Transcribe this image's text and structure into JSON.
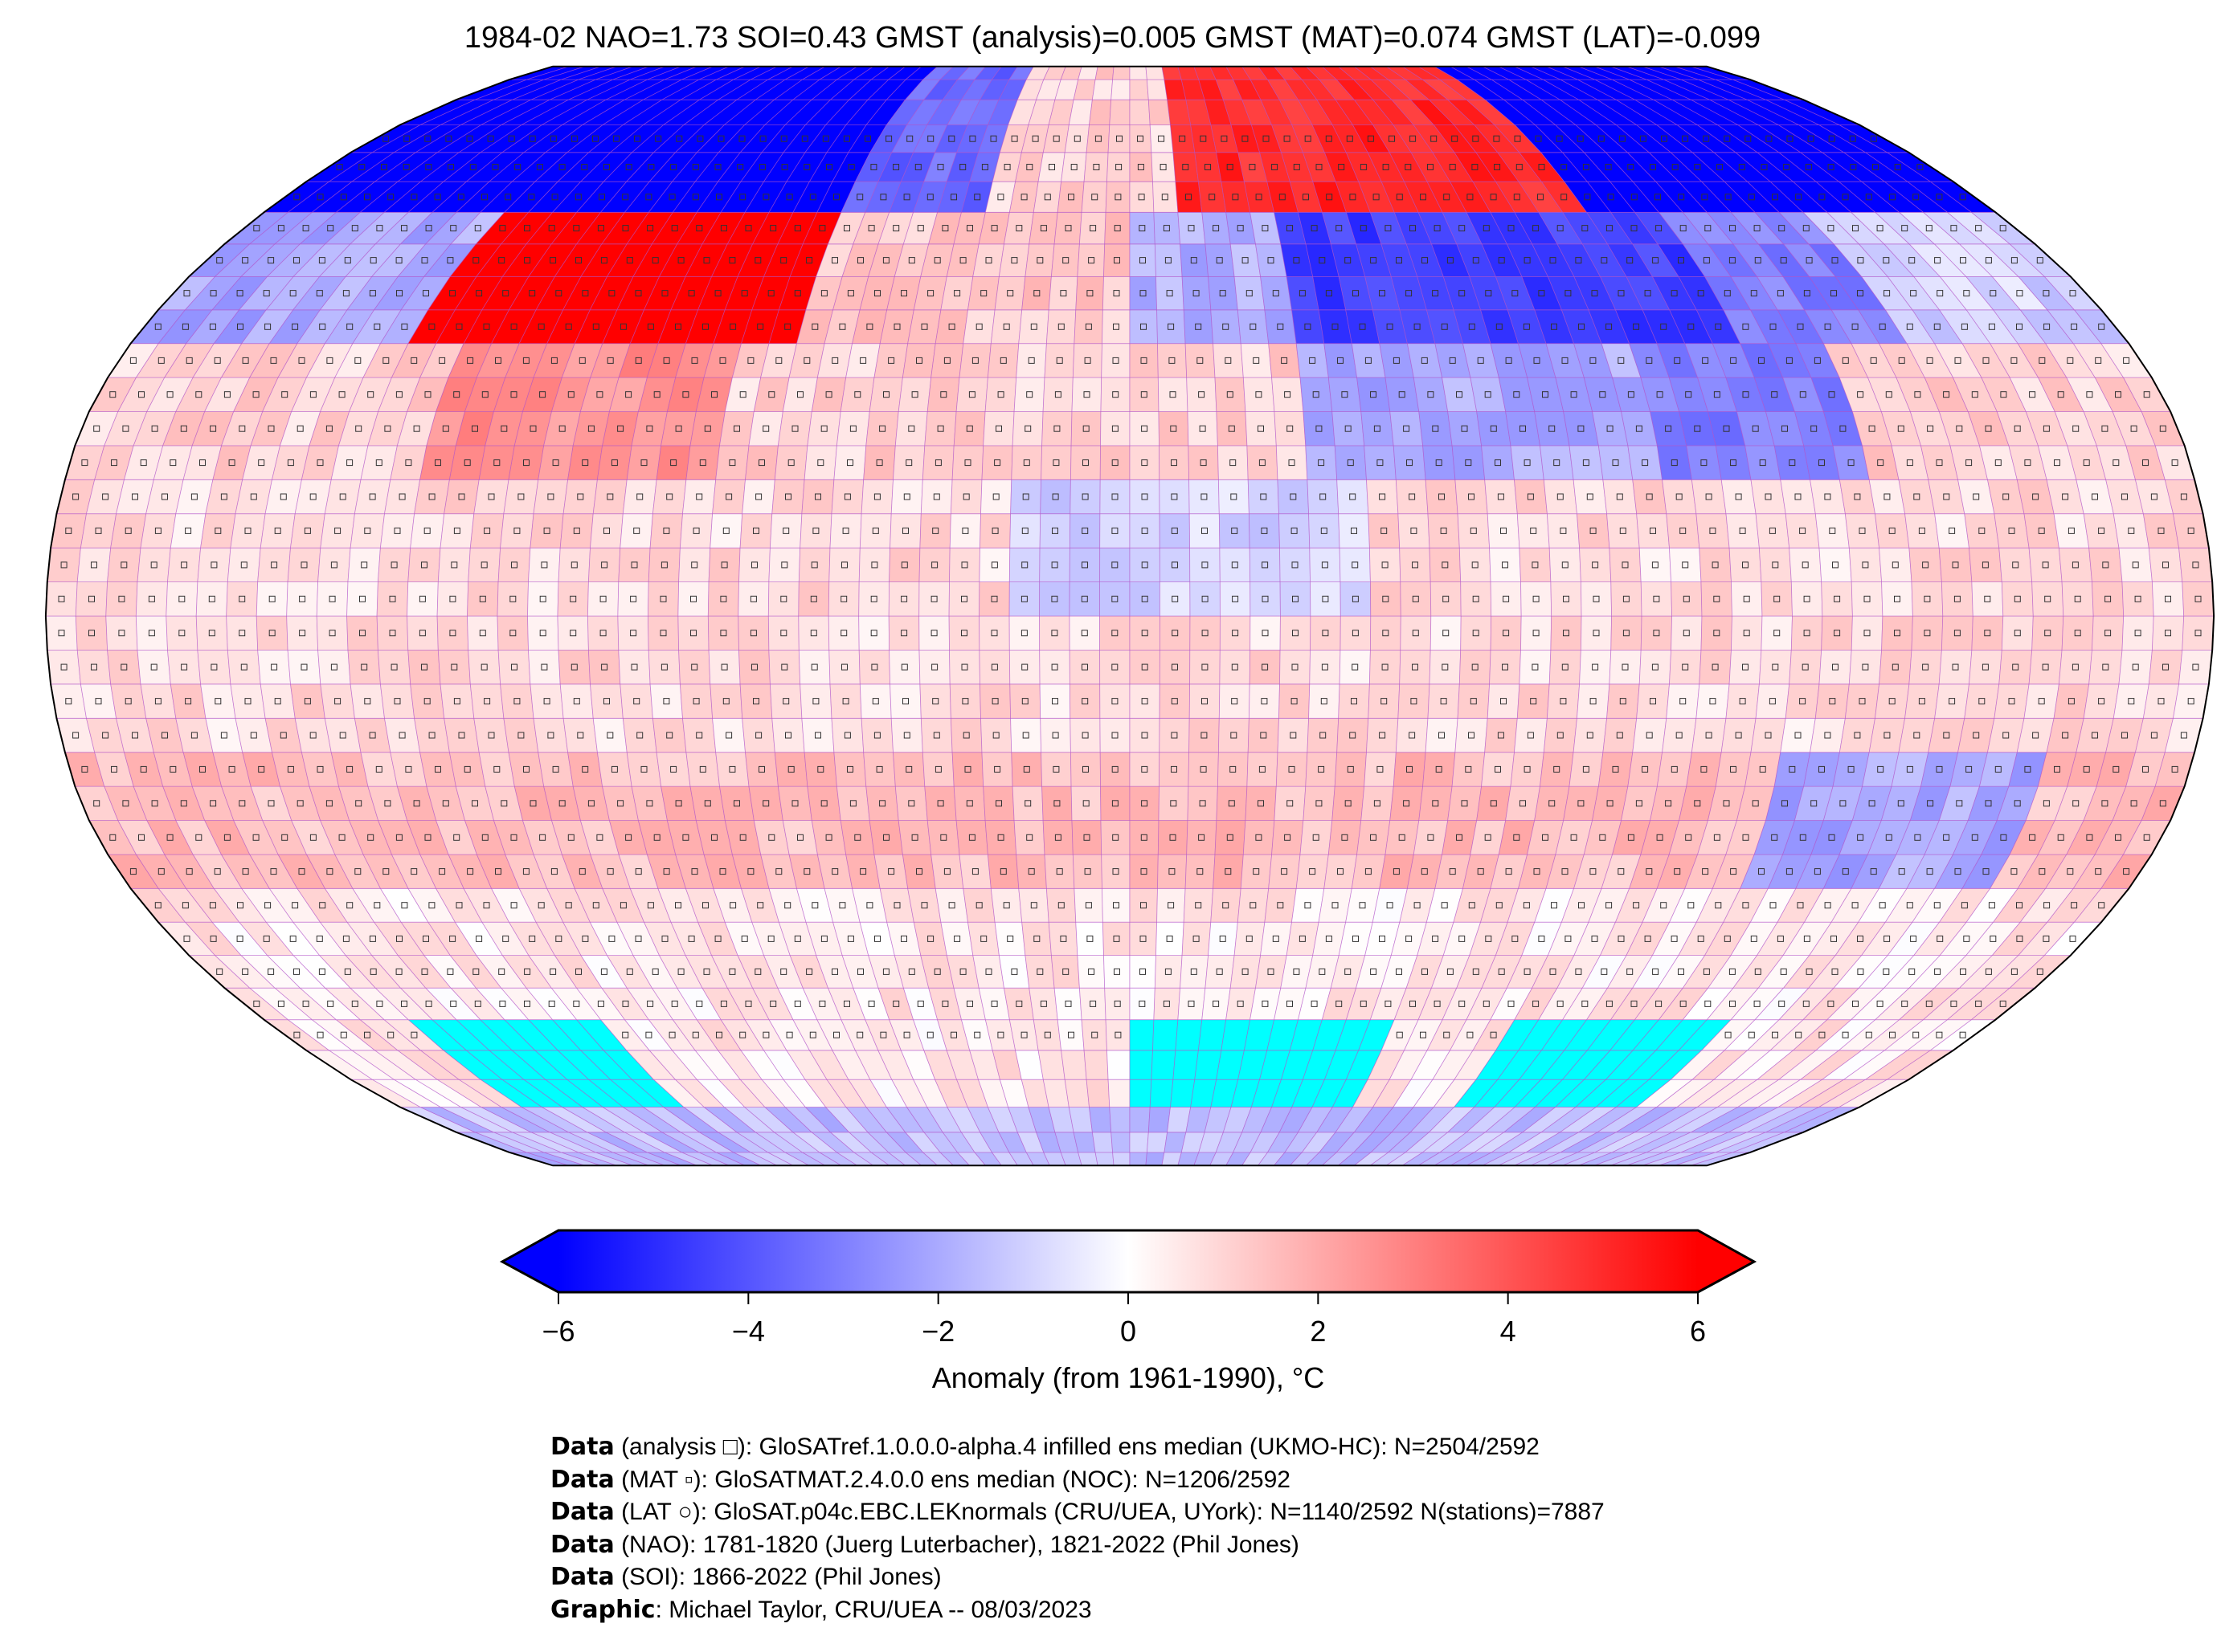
{
  "title": "1984-02 NAO=1.73 SOI=0.43 GMST (analysis)=0.005 GMST (MAT)=0.074 GMST (LAT)=-0.099",
  "map": {
    "projection": "Robinson",
    "grid": "5x5 degree cells",
    "colormap": "bwr",
    "missing_color": "#00ffff",
    "gridline_color": "#b050c8"
  },
  "colorbar": {
    "min": -6,
    "max": 6,
    "extend": "both",
    "ticks": [
      "−6",
      "−4",
      "−2",
      "0",
      "2",
      "4",
      "6"
    ],
    "tick_values": [
      -6,
      -4,
      -2,
      0,
      2,
      4,
      6
    ],
    "label": "Anomaly (from 1961-1990), °C",
    "low_color": "#0000ff",
    "mid_color": "#ffffff",
    "high_color": "#ff0000"
  },
  "footer": [
    {
      "bold": "Data",
      "text": " (analysis □): GloSATref.1.0.0.0-alpha.4 infilled ens median (UKMO-HC): N=2504/2592"
    },
    {
      "bold": "Data",
      "text": " (MAT ▫): GloSATMAT.2.4.0.0 ens median (NOC): N=1206/2592"
    },
    {
      "bold": "Data",
      "text": " (LAT ○): GloSAT.p04c.EBC.LEKnormals (CRU/UEA, UYork): N=1140/2592 N(stations)=7887"
    },
    {
      "bold": "Data",
      "text": " (NAO): 1781-1820 (Juerg Luterbacher), 1821-2022 (Phil Jones)"
    },
    {
      "bold": "Data",
      "text": " (SOI): 1866-2022 (Phil Jones)"
    },
    {
      "bold": "Graphic",
      "text": ": Michael Taylor, CRU/UEA -- 08/03/2023"
    }
  ]
}
